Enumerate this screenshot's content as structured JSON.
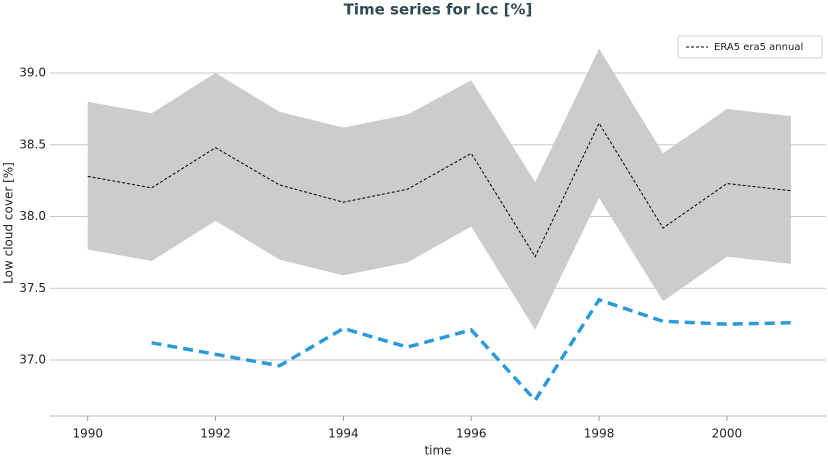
{
  "chart_data": {
    "type": "line",
    "title": "Time series for lcc [%]",
    "x_label": "time",
    "y_label": "Low cloud cover [%]",
    "x": [
      1990,
      1991,
      1992,
      1993,
      1994,
      1995,
      1996,
      1997,
      1998,
      1999,
      2000,
      2001
    ],
    "band": {
      "color": "#cccccc",
      "upper": [
        38.8,
        38.72,
        39.0,
        38.73,
        38.62,
        38.71,
        38.95,
        38.24,
        39.17,
        38.44,
        38.75,
        38.7
      ],
      "lower": [
        37.77,
        37.69,
        37.97,
        37.7,
        37.59,
        37.68,
        37.93,
        37.21,
        38.13,
        37.41,
        37.72,
        37.67
      ]
    },
    "series": [
      {
        "name": "ERA5 era5 annual",
        "color": "#000000",
        "dash": "3,2",
        "width": 1,
        "values": [
          38.28,
          38.2,
          38.48,
          38.22,
          38.1,
          38.19,
          38.44,
          37.72,
          38.65,
          37.92,
          38.23,
          38.18
        ]
      },
      {
        "color": "#2a9ad8",
        "dash": "10,6",
        "width": 3.5,
        "values": [
          null,
          37.12,
          37.04,
          36.96,
          37.22,
          37.09,
          37.21,
          36.72,
          37.42,
          37.27,
          37.25,
          37.26
        ]
      }
    ],
    "xlim": [
      1989.41,
      2001.55
    ],
    "ylim": [
      36.61,
      39.3
    ],
    "xticks": [
      1990,
      1992,
      1994,
      1996,
      1998,
      2000
    ],
    "yticks": [
      {
        "value": 37,
        "label": "37.0"
      },
      37.5,
      {
        "value": 38,
        "label": "38.0"
      },
      38.5,
      {
        "value": 39,
        "label": "39.0"
      }
    ],
    "grid": true,
    "legend": "upper right"
  }
}
